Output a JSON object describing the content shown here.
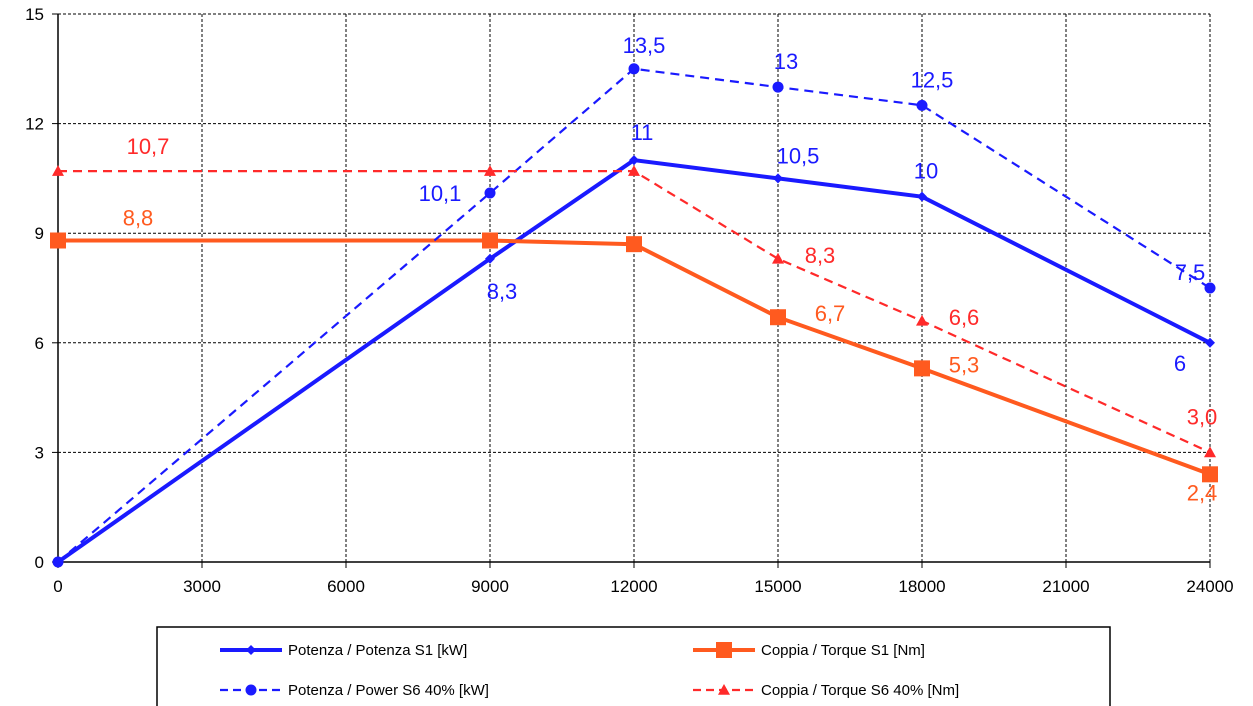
{
  "chart_data": {
    "type": "line",
    "title": "",
    "xlabel": "",
    "ylabel": "",
    "xlim": [
      0,
      24000
    ],
    "ylim": [
      0,
      15
    ],
    "x_ticks": [
      "0",
      "3000",
      "6000",
      "9000",
      "12000",
      "15000",
      "18000",
      "21000",
      "24000"
    ],
    "y_ticks": [
      "0",
      "3",
      "6",
      "9",
      "12",
      "15"
    ],
    "grid": true,
    "legend_position": "bottom",
    "series": [
      {
        "name": "Potenza / Potenza S1 [kW]",
        "color": "#1a1aff",
        "dash": "solid",
        "marker": "diamond",
        "x": [
          0,
          9000,
          12000,
          15000,
          18000,
          24000
        ],
        "y": [
          0,
          8.3,
          11,
          10.5,
          10,
          6
        ],
        "labels": [
          "",
          "8,3",
          "11",
          "10,5",
          "10",
          "6"
        ]
      },
      {
        "name": "Coppia / Torque S1 [Nm]",
        "color": "#ff5a1f",
        "dash": "solid",
        "marker": "square",
        "x": [
          0,
          9000,
          12000,
          15000,
          18000,
          24000
        ],
        "y": [
          8.8,
          8.8,
          8.7,
          6.7,
          5.3,
          2.4
        ],
        "labels": [
          "8,8",
          "",
          "",
          "6,7",
          "5,3",
          "2,4"
        ]
      },
      {
        "name": "Potenza / Power S6 40% [kW]",
        "color": "#1a1aff",
        "dash": "dashed",
        "marker": "circle",
        "x": [
          0,
          9000,
          12000,
          15000,
          18000,
          24000
        ],
        "y": [
          0,
          10.1,
          13.5,
          13,
          12.5,
          7.5
        ],
        "labels": [
          "",
          "10,1",
          "13,5",
          "13",
          "12,5",
          "7,5"
        ]
      },
      {
        "name": "Coppia / Torque S6 40% [Nm]",
        "color": "#ff2a2a",
        "dash": "dashed",
        "marker": "triangle",
        "x": [
          0,
          9000,
          12000,
          15000,
          18000,
          24000
        ],
        "y": [
          10.7,
          10.7,
          10.7,
          8.3,
          6.6,
          3.0
        ],
        "labels": [
          "10,7",
          "",
          "",
          "8,3",
          "6,6",
          "3,0"
        ]
      }
    ]
  }
}
